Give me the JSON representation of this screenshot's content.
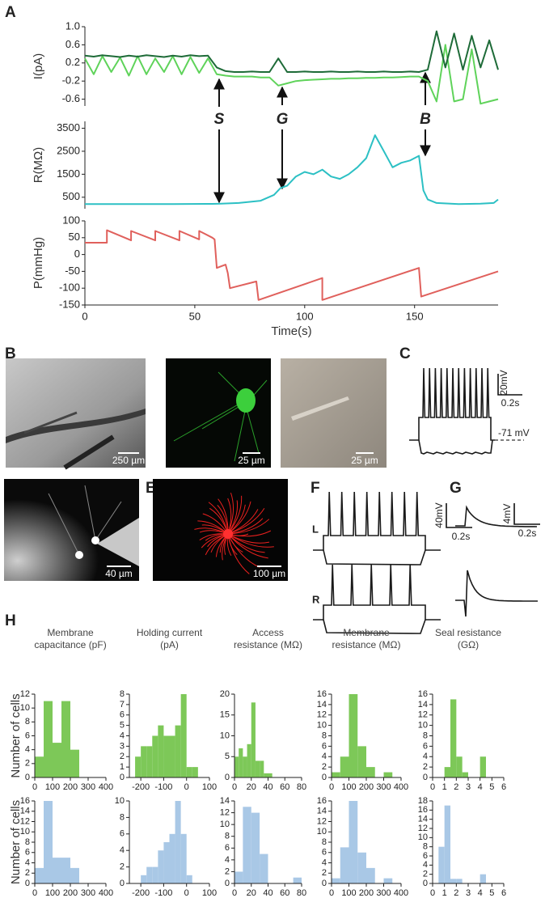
{
  "figure": {
    "panel_labels": [
      "A",
      "B",
      "C",
      "D",
      "E",
      "F",
      "G",
      "H"
    ],
    "annotations": [
      "S",
      "G",
      "B"
    ],
    "B_scales": [
      "250 µm",
      "25 µm",
      "25 µm"
    ],
    "C": {
      "y_scale": "20mV",
      "x_scale": "0.2s",
      "rest": "-71 mV"
    },
    "D_scale": "40 µm",
    "E_scale": "100 µm",
    "F": {
      "y_scale": "40mV",
      "x_scale": "0.2s",
      "traces": [
        "L",
        "R"
      ]
    },
    "G": {
      "y_scale": "4mV",
      "x_scale": "0.2s"
    }
  },
  "chart_data": [
    {
      "type": "line",
      "ylabel": "I(pA)",
      "xlim": [
        0,
        188
      ],
      "ylim": [
        -0.75,
        1.0
      ],
      "yticks": [
        {
          "value": 1.0,
          "label": "1.0"
        },
        0.6,
        0.2,
        -0.2,
        -0.6
      ],
      "x": [
        0,
        4,
        8,
        12,
        16,
        20,
        24,
        28,
        32,
        36,
        40,
        44,
        48,
        52,
        56,
        60,
        64,
        68,
        72,
        76,
        80,
        84,
        88,
        92,
        96,
        100,
        104,
        108,
        112,
        116,
        120,
        124,
        128,
        132,
        136,
        140,
        144,
        148,
        152,
        156,
        160,
        164,
        168,
        172,
        176,
        180,
        184,
        188
      ],
      "series": [
        {
          "color": "#5fd35a",
          "values": [
            0.3,
            -0.05,
            0.35,
            0.0,
            0.32,
            -0.08,
            0.35,
            -0.05,
            0.3,
            0.0,
            0.35,
            -0.05,
            0.33,
            -0.02,
            0.3,
            -0.05,
            -0.08,
            -0.1,
            -0.1,
            -0.1,
            -0.12,
            -0.12,
            -0.3,
            -0.25,
            -0.2,
            -0.18,
            -0.17,
            -0.16,
            -0.15,
            -0.15,
            -0.14,
            -0.14,
            -0.13,
            -0.13,
            -0.12,
            -0.12,
            -0.11,
            -0.1,
            -0.1,
            -0.2,
            -0.65,
            0.6,
            -0.65,
            -0.6,
            0.5,
            -0.7,
            -0.65,
            -0.6
          ]
        },
        {
          "color": "#1e6b38",
          "values": [
            0.36,
            0.34,
            0.37,
            0.35,
            0.33,
            0.36,
            0.34,
            0.37,
            0.35,
            0.33,
            0.36,
            0.34,
            0.37,
            0.35,
            0.36,
            0.1,
            0.02,
            0.0,
            0.0,
            0.01,
            0.0,
            0.0,
            0.3,
            0.0,
            0.0,
            0.01,
            0.0,
            0.0,
            0.01,
            0.0,
            0.0,
            0.01,
            0.0,
            0.0,
            0.01,
            0.0,
            0.0,
            0.01,
            0.0,
            0.05,
            0.9,
            0.1,
            0.85,
            0.05,
            0.8,
            0.1,
            0.7,
            0.05
          ]
        }
      ]
    },
    {
      "type": "line",
      "ylabel": "R(MΩ)",
      "xlim": [
        0,
        188
      ],
      "ylim": [
        0,
        3800
      ],
      "yticks": [
        3500,
        2500,
        1500,
        500
      ],
      "x": [
        0,
        20,
        40,
        58,
        62,
        70,
        80,
        86,
        89,
        92,
        96,
        100,
        104,
        108,
        112,
        116,
        120,
        124,
        128,
        132,
        136,
        140,
        144,
        148,
        152,
        154,
        156,
        160,
        170,
        180,
        186,
        188
      ],
      "series": [
        {
          "color": "#2cc0c4",
          "values": [
            200,
            200,
            200,
            210,
            220,
            250,
            350,
            600,
            900,
            1000,
            1400,
            1600,
            1500,
            1700,
            1400,
            1300,
            1500,
            1800,
            2200,
            3200,
            2500,
            1800,
            2000,
            2100,
            2300,
            800,
            400,
            250,
            200,
            220,
            250,
            400
          ]
        }
      ]
    },
    {
      "type": "line",
      "ylabel": "P(mmHg)",
      "xlabel": "Time(s)",
      "xlim": [
        0,
        188
      ],
      "ylim": [
        -150,
        100
      ],
      "yticks": [
        100,
        50,
        0,
        -50,
        -100,
        -150
      ],
      "xticks": [
        0,
        50,
        100,
        150
      ],
      "x": [
        0,
        10,
        10,
        21,
        21,
        32,
        32,
        43,
        43,
        52,
        52,
        58,
        59,
        60,
        64,
        65,
        66,
        78,
        79,
        108,
        108,
        152,
        153,
        188
      ],
      "series": [
        {
          "color": "#e0605c",
          "values": [
            35,
            35,
            72,
            42,
            70,
            42,
            70,
            42,
            70,
            45,
            70,
            50,
            45,
            -40,
            -30,
            -55,
            -100,
            -80,
            -135,
            -70,
            -135,
            -40,
            -125,
            -50
          ]
        }
      ]
    },
    {
      "type": "histogram",
      "title": [
        "Membrane",
        "capacitance (pF)"
      ],
      "ylabel": "Number of cells",
      "color": "#7dc858",
      "bins": [
        0,
        50,
        100,
        150,
        200,
        250
      ],
      "values": [
        3,
        11,
        5,
        11,
        4
      ],
      "xlim": [
        0,
        400
      ],
      "xticks": [
        0,
        100,
        200,
        300,
        400
      ],
      "ylim": [
        0,
        12
      ],
      "yticks": [
        0,
        2,
        4,
        6,
        8,
        10,
        12
      ]
    },
    {
      "type": "histogram",
      "title": [
        "Holding current",
        "(pA)"
      ],
      "color": "#7dc858",
      "bins": [
        -225,
        -200,
        -175,
        -150,
        -125,
        -100,
        -75,
        -50,
        -25,
        0,
        25,
        50
      ],
      "values": [
        2,
        3,
        3,
        4,
        5,
        4,
        4,
        5,
        8,
        1,
        1
      ],
      "xlim": [
        -250,
        100
      ],
      "xticks": [
        -200,
        -100,
        0,
        100
      ],
      "ylim": [
        0,
        8
      ],
      "yticks": [
        0,
        1,
        2,
        3,
        4,
        5,
        6,
        7,
        8
      ]
    },
    {
      "type": "histogram",
      "title": [
        "Access",
        "resistance (MΩ)"
      ],
      "color": "#7dc858",
      "bins": [
        0,
        5,
        10,
        15,
        20,
        25,
        30,
        35,
        40,
        45
      ],
      "values": [
        5,
        7,
        5,
        8,
        18,
        4,
        4,
        1,
        1
      ],
      "xlim": [
        0,
        80
      ],
      "xticks": [
        0,
        20,
        40,
        60,
        80
      ],
      "ylim": [
        0,
        20
      ],
      "yticks": [
        0,
        5,
        10,
        15,
        20
      ]
    },
    {
      "type": "histogram",
      "title": [
        "Membrane",
        "resistance (MΩ)"
      ],
      "color": "#7dc858",
      "bins": [
        0,
        50,
        100,
        150,
        200,
        250,
        300,
        350
      ],
      "values": [
        1,
        4,
        16,
        6,
        2,
        0,
        1
      ],
      "xlim": [
        0,
        400
      ],
      "xticks": [
        0,
        100,
        200,
        300,
        400
      ],
      "ylim": [
        0,
        16
      ],
      "yticks": [
        0,
        2,
        4,
        6,
        8,
        10,
        12,
        14,
        16
      ]
    },
    {
      "type": "histogram",
      "title": [
        "Seal resistance",
        "(GΩ)"
      ],
      "color": "#7dc858",
      "bins": [
        1,
        1.5,
        2,
        2.5,
        3,
        3.5,
        4,
        4.5
      ],
      "values": [
        2,
        15,
        4,
        1,
        0,
        0,
        4
      ],
      "xlim": [
        0,
        6
      ],
      "xticks": [
        0,
        1,
        2,
        3,
        4,
        5,
        6
      ],
      "ylim": [
        0,
        16
      ],
      "yticks": [
        0,
        2,
        4,
        6,
        8,
        10,
        12,
        14,
        16
      ]
    },
    {
      "type": "histogram",
      "ylabel": "Number of cells",
      "color": "#a9c8e6",
      "bins": [
        0,
        50,
        100,
        150,
        200,
        250
      ],
      "values": [
        3,
        16,
        5,
        5,
        3
      ],
      "xlim": [
        0,
        400
      ],
      "xticks": [
        0,
        100,
        200,
        300,
        400
      ],
      "ylim": [
        0,
        16
      ],
      "yticks": [
        0,
        2,
        4,
        6,
        8,
        10,
        12,
        14,
        16
      ]
    },
    {
      "type": "histogram",
      "color": "#a9c8e6",
      "bins": [
        -200,
        -175,
        -150,
        -125,
        -100,
        -75,
        -50,
        -25,
        0,
        25
      ],
      "values": [
        1,
        2,
        2,
        4,
        5,
        6,
        10,
        6,
        1
      ],
      "xlim": [
        -250,
        100
      ],
      "xticks": [
        -200,
        -100,
        0,
        100
      ],
      "ylim": [
        0,
        10
      ],
      "yticks": [
        0,
        2,
        4,
        6,
        8,
        10
      ]
    },
    {
      "type": "histogram",
      "color": "#a9c8e6",
      "bins": [
        0,
        10,
        20,
        30,
        40,
        50,
        60,
        70,
        80
      ],
      "values": [
        2,
        13,
        12,
        5,
        0,
        0,
        0,
        1
      ],
      "xlim": [
        0,
        80
      ],
      "xticks": [
        0,
        20,
        40,
        60,
        80
      ],
      "ylim": [
        0,
        14
      ],
      "yticks": [
        0,
        2,
        4,
        6,
        8,
        10,
        12,
        14
      ]
    },
    {
      "type": "histogram",
      "color": "#a9c8e6",
      "bins": [
        0,
        50,
        100,
        150,
        200,
        250,
        300,
        350
      ],
      "values": [
        1,
        7,
        16,
        6,
        3,
        0,
        1
      ],
      "xlim": [
        0,
        400
      ],
      "xticks": [
        0,
        100,
        200,
        300,
        400
      ],
      "ylim": [
        0,
        16
      ],
      "yticks": [
        0,
        2,
        4,
        6,
        8,
        10,
        12,
        14,
        16
      ]
    },
    {
      "type": "histogram",
      "color": "#a9c8e6",
      "bins": [
        0.5,
        1,
        1.5,
        2,
        2.5,
        3,
        3.5,
        4,
        4.5
      ],
      "values": [
        8,
        17,
        1,
        1,
        0,
        0,
        0,
        2
      ],
      "xlim": [
        0,
        6
      ],
      "xticks": [
        0,
        1,
        2,
        3,
        4,
        5,
        6
      ],
      "ylim": [
        0,
        18
      ],
      "yticks": [
        0,
        2,
        4,
        6,
        8,
        10,
        12,
        14,
        16,
        18
      ]
    }
  ]
}
